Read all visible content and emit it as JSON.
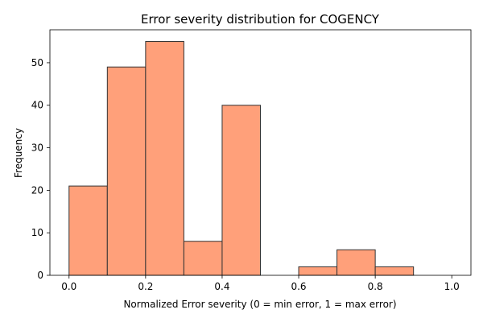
{
  "chart_data": {
    "type": "bar",
    "title": "Error severity distribution for COGENCY",
    "xlabel": "Normalized Error severity (0 = min error, 1 = max error)",
    "ylabel": "Frequency",
    "bin_edges": [
      0.0,
      0.1,
      0.2,
      0.3,
      0.4,
      0.5,
      0.6,
      0.7,
      0.8,
      0.9,
      1.0
    ],
    "values": [
      21,
      49,
      55,
      8,
      40,
      0,
      2,
      6,
      2,
      0
    ],
    "xlim": [
      -0.05,
      1.05
    ],
    "ylim": [
      0,
      57.75
    ],
    "xticks": [
      0.0,
      0.2,
      0.4,
      0.6,
      0.8,
      1.0
    ],
    "xtick_labels": [
      "0.0",
      "0.2",
      "0.4",
      "0.6",
      "0.8",
      "1.0"
    ],
    "yticks": [
      0,
      10,
      20,
      30,
      40,
      50
    ],
    "ytick_labels": [
      "0",
      "10",
      "20",
      "30",
      "40",
      "50"
    ],
    "grid": false,
    "bar_color": "#FFA07A",
    "edge_color": "#333333"
  }
}
